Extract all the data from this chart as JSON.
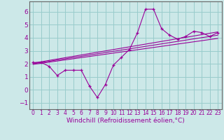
{
  "xlabel": "Windchill (Refroidissement éolien,°C)",
  "bg_color": "#cce8e8",
  "grid_color": "#99cccc",
  "line_color": "#990099",
  "spine_color": "#666666",
  "xlim": [
    -0.5,
    23.5
  ],
  "ylim": [
    -1.5,
    6.8
  ],
  "yticks": [
    -1,
    0,
    1,
    2,
    3,
    4,
    5,
    6
  ],
  "xticks": [
    0,
    1,
    2,
    3,
    4,
    5,
    6,
    7,
    8,
    9,
    10,
    11,
    12,
    13,
    14,
    15,
    16,
    17,
    18,
    19,
    20,
    21,
    22,
    23
  ],
  "series1_x": [
    0,
    1,
    2,
    3,
    4,
    5,
    6,
    7,
    8,
    9,
    10,
    11,
    12,
    13,
    14,
    15,
    16,
    17,
    18,
    19,
    20,
    21,
    22,
    23
  ],
  "series1_y": [
    2.1,
    2.1,
    1.8,
    1.1,
    1.5,
    1.5,
    1.5,
    0.3,
    -0.6,
    0.4,
    1.9,
    2.5,
    3.1,
    4.4,
    6.2,
    6.2,
    4.7,
    4.2,
    3.9,
    4.1,
    4.5,
    4.4,
    4.1,
    4.4
  ],
  "series2_x": [
    0,
    23
  ],
  "series2_y": [
    2.05,
    4.45
  ],
  "series3_x": [
    0,
    23
  ],
  "series3_y": [
    2.0,
    4.2
  ],
  "series4_x": [
    0,
    23
  ],
  "series4_y": [
    1.95,
    3.95
  ],
  "xlabel_color": "#990099",
  "xlabel_fontsize": 6.5,
  "tick_fontsize_x": 5.5,
  "tick_fontsize_y": 6.5
}
